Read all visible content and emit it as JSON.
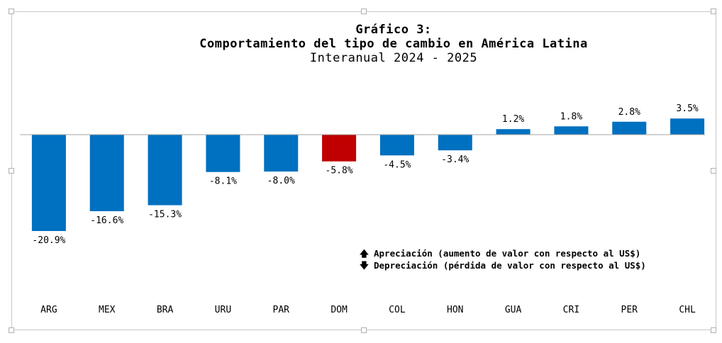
{
  "chart_data": {
    "type": "bar",
    "title": "Gráfico 3:",
    "subtitle": "Comportamiento del tipo de cambio en América Latina",
    "subtitle2": "Interanual 2024 - 2025",
    "xlabel": "",
    "ylabel": "",
    "categories": [
      "ARG",
      "MEX",
      "BRA",
      "URU",
      "PAR",
      "DOM",
      "COL",
      "HON",
      "GUA",
      "CRI",
      "PER",
      "CHL"
    ],
    "values": [
      -20.9,
      -16.6,
      -15.3,
      -8.1,
      -8.0,
      -5.8,
      -4.5,
      -3.4,
      1.2,
      1.8,
      2.8,
      3.5
    ],
    "data_labels": [
      "-20.9%",
      "-16.6%",
      "-15.3%",
      "-8.1%",
      "-8.0%",
      "-5.8%",
      "-4.5%",
      "-3.4%",
      "1.2%",
      "1.8%",
      "2.8%",
      "3.5%"
    ],
    "highlight_category": "DOM",
    "ylim": [
      -20.9,
      3.5
    ],
    "grid": false,
    "colors": {
      "default": "#0070c0",
      "highlight": "#c00000",
      "axis": "#a6a6a6"
    }
  },
  "legend": {
    "appreciation_icon": "arrow-up-icon",
    "appreciation_arrow": "🡅",
    "appreciation_text": "Apreciación (aumento de valor con respecto al US$)",
    "depreciation_icon": "arrow-down-icon",
    "depreciation_arrow": "🡇",
    "depreciation_text": "Depreciación (pérdida de valor con respecto al US$)"
  }
}
